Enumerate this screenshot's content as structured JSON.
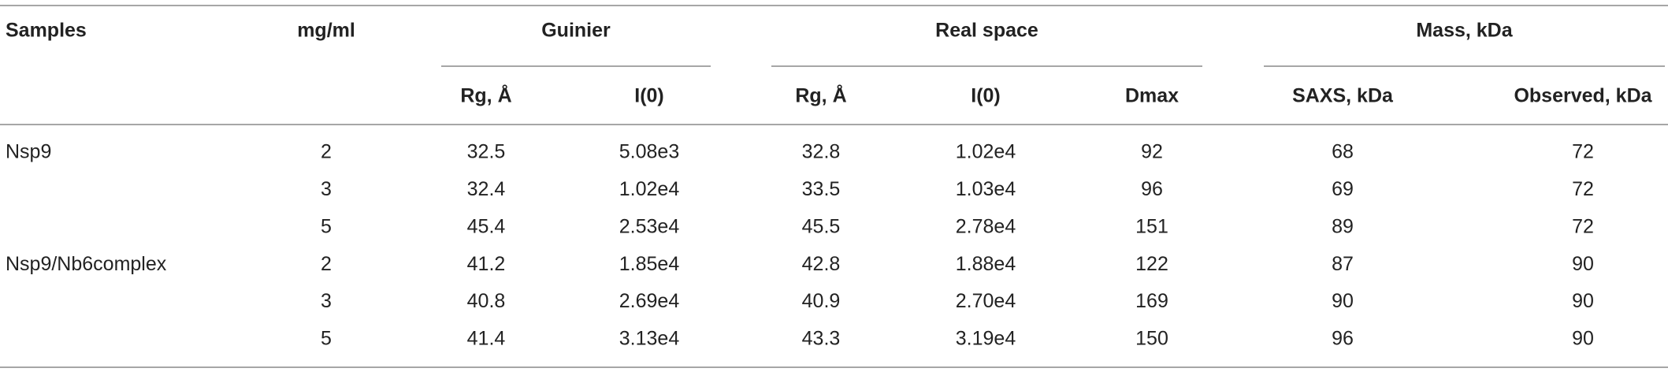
{
  "table": {
    "header": {
      "samples": "Samples",
      "concentration": "mg/ml",
      "groups": [
        {
          "label": "Guinier",
          "columns": [
            "Rg, Å",
            "I(0)"
          ]
        },
        {
          "label": "Real space",
          "columns": [
            "Rg, Å",
            "I(0)",
            "Dmax"
          ]
        },
        {
          "label": "Mass, kDa",
          "columns": [
            "SAXS, kDa",
            "Observed, kDa"
          ]
        }
      ]
    },
    "samples": [
      {
        "name": "Nsp9",
        "rows": [
          [
            "2",
            "32.5",
            "5.08e3",
            "32.8",
            "1.02e4",
            "92",
            "68",
            "72"
          ],
          [
            "3",
            "32.4",
            "1.02e4",
            "33.5",
            "1.03e4",
            "96",
            "69",
            "72"
          ],
          [
            "5",
            "45.4",
            "2.53e4",
            "45.5",
            "2.78e4",
            "151",
            "89",
            "72"
          ]
        ]
      },
      {
        "name": "Nsp9/Nb6complex",
        "rows": [
          [
            "2",
            "41.2",
            "1.85e4",
            "42.8",
            "1.88e4",
            "122",
            "87",
            "90"
          ],
          [
            "3",
            "40.8",
            "2.69e4",
            "40.9",
            "2.70e4",
            "169",
            "90",
            "90"
          ],
          [
            "5",
            "41.4",
            "3.13e4",
            "43.3",
            "3.19e4",
            "150",
            "96",
            "90"
          ]
        ]
      }
    ]
  }
}
